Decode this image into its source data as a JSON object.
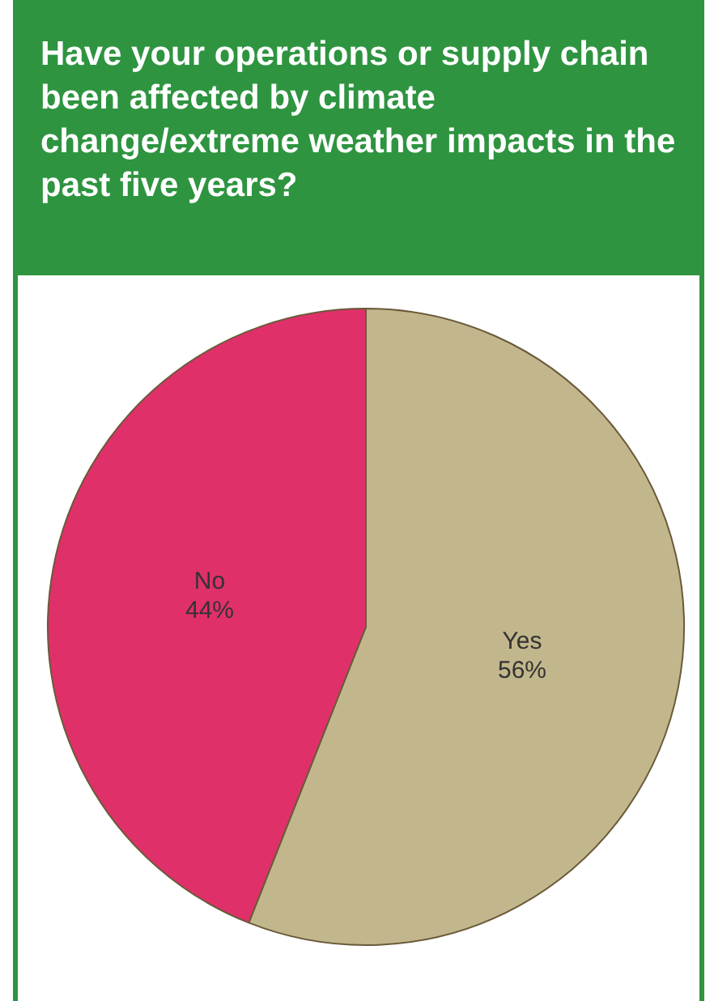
{
  "chart_data": {
    "type": "pie",
    "title": "Have your operations or supply chain been affected by climate change/extreme weather impacts in the past five years?",
    "categories": [
      "Yes",
      "No"
    ],
    "values": [
      56,
      44
    ],
    "colors": [
      "#c2b78c",
      "#e0306a"
    ],
    "value_labels": [
      "56%",
      "44%"
    ],
    "legend": false
  }
}
